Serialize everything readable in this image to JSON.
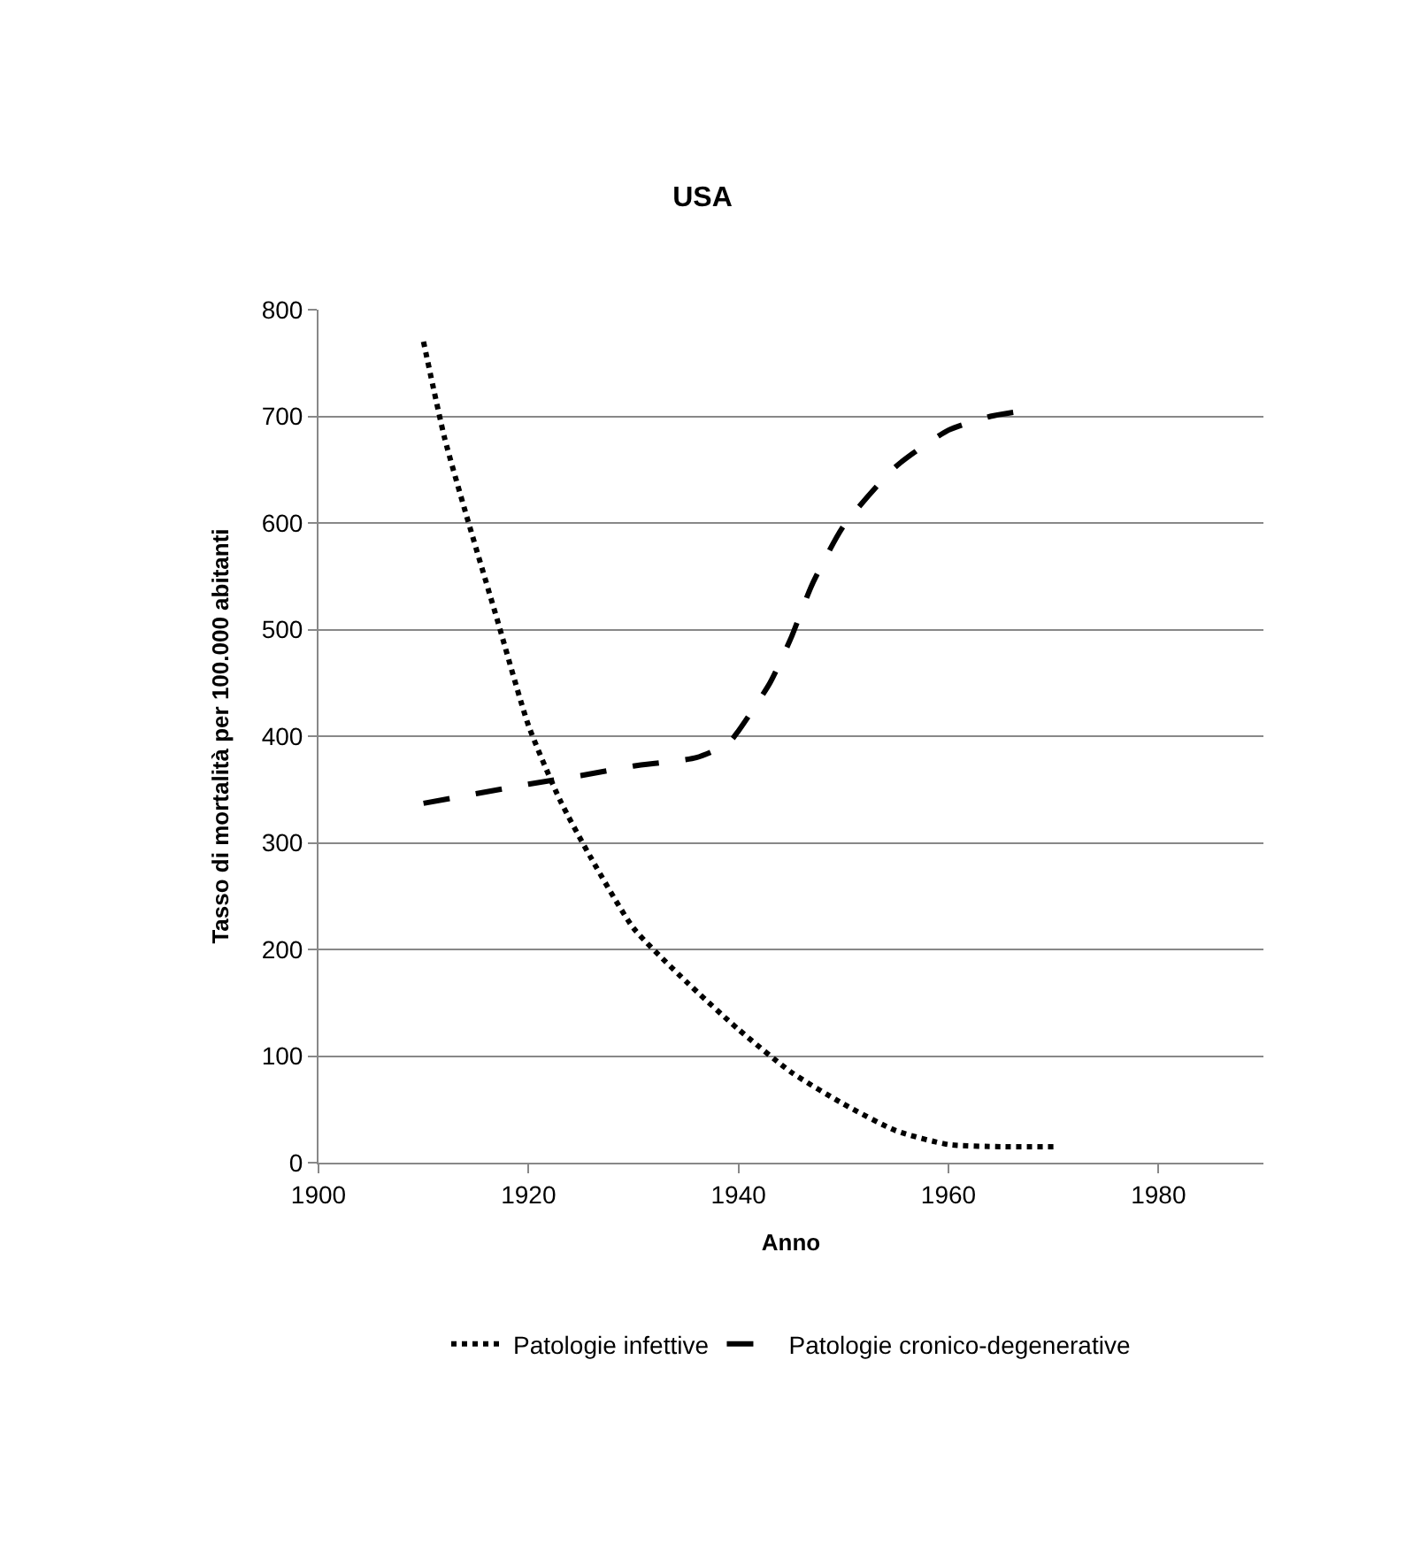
{
  "chart_data": {
    "type": "line",
    "title": "USA",
    "xlabel": "Anno",
    "ylabel": "Tasso di mortalità per 100.000 abitanti",
    "xlim": [
      1900,
      1990
    ],
    "xticks": [
      1900,
      1920,
      1940,
      1960,
      1980
    ],
    "ylim": [
      0,
      800
    ],
    "yticks": [
      0,
      100,
      200,
      300,
      400,
      500,
      600,
      700,
      800
    ],
    "grid": "y",
    "legend": "bottom",
    "marker": "none",
    "series": [
      {
        "name": "Patologie infettive",
        "color": "#000000",
        "line_style": "dotted",
        "x": [
          1910,
          1912,
          1914,
          1917,
          1920,
          1923,
          1926,
          1930,
          1935,
          1940,
          1945,
          1950,
          1955,
          1960,
          1965,
          1970
        ],
        "values": [
          770,
          680,
          610,
          510,
          410,
          340,
          285,
          220,
          170,
          125,
          85,
          55,
          30,
          17,
          15,
          15
        ]
      },
      {
        "name": "Patologie cronico-degenerative",
        "color": "#000000",
        "line_style": "dashed",
        "x": [
          1910,
          1915,
          1920,
          1925,
          1930,
          1936,
          1939,
          1940,
          1943,
          1945,
          1947,
          1950,
          1955,
          1960,
          1964,
          1967
        ],
        "values": [
          337,
          346,
          355,
          363,
          372,
          380,
          393,
          405,
          450,
          492,
          542,
          597,
          653,
          687,
          700,
          705
        ]
      }
    ]
  }
}
